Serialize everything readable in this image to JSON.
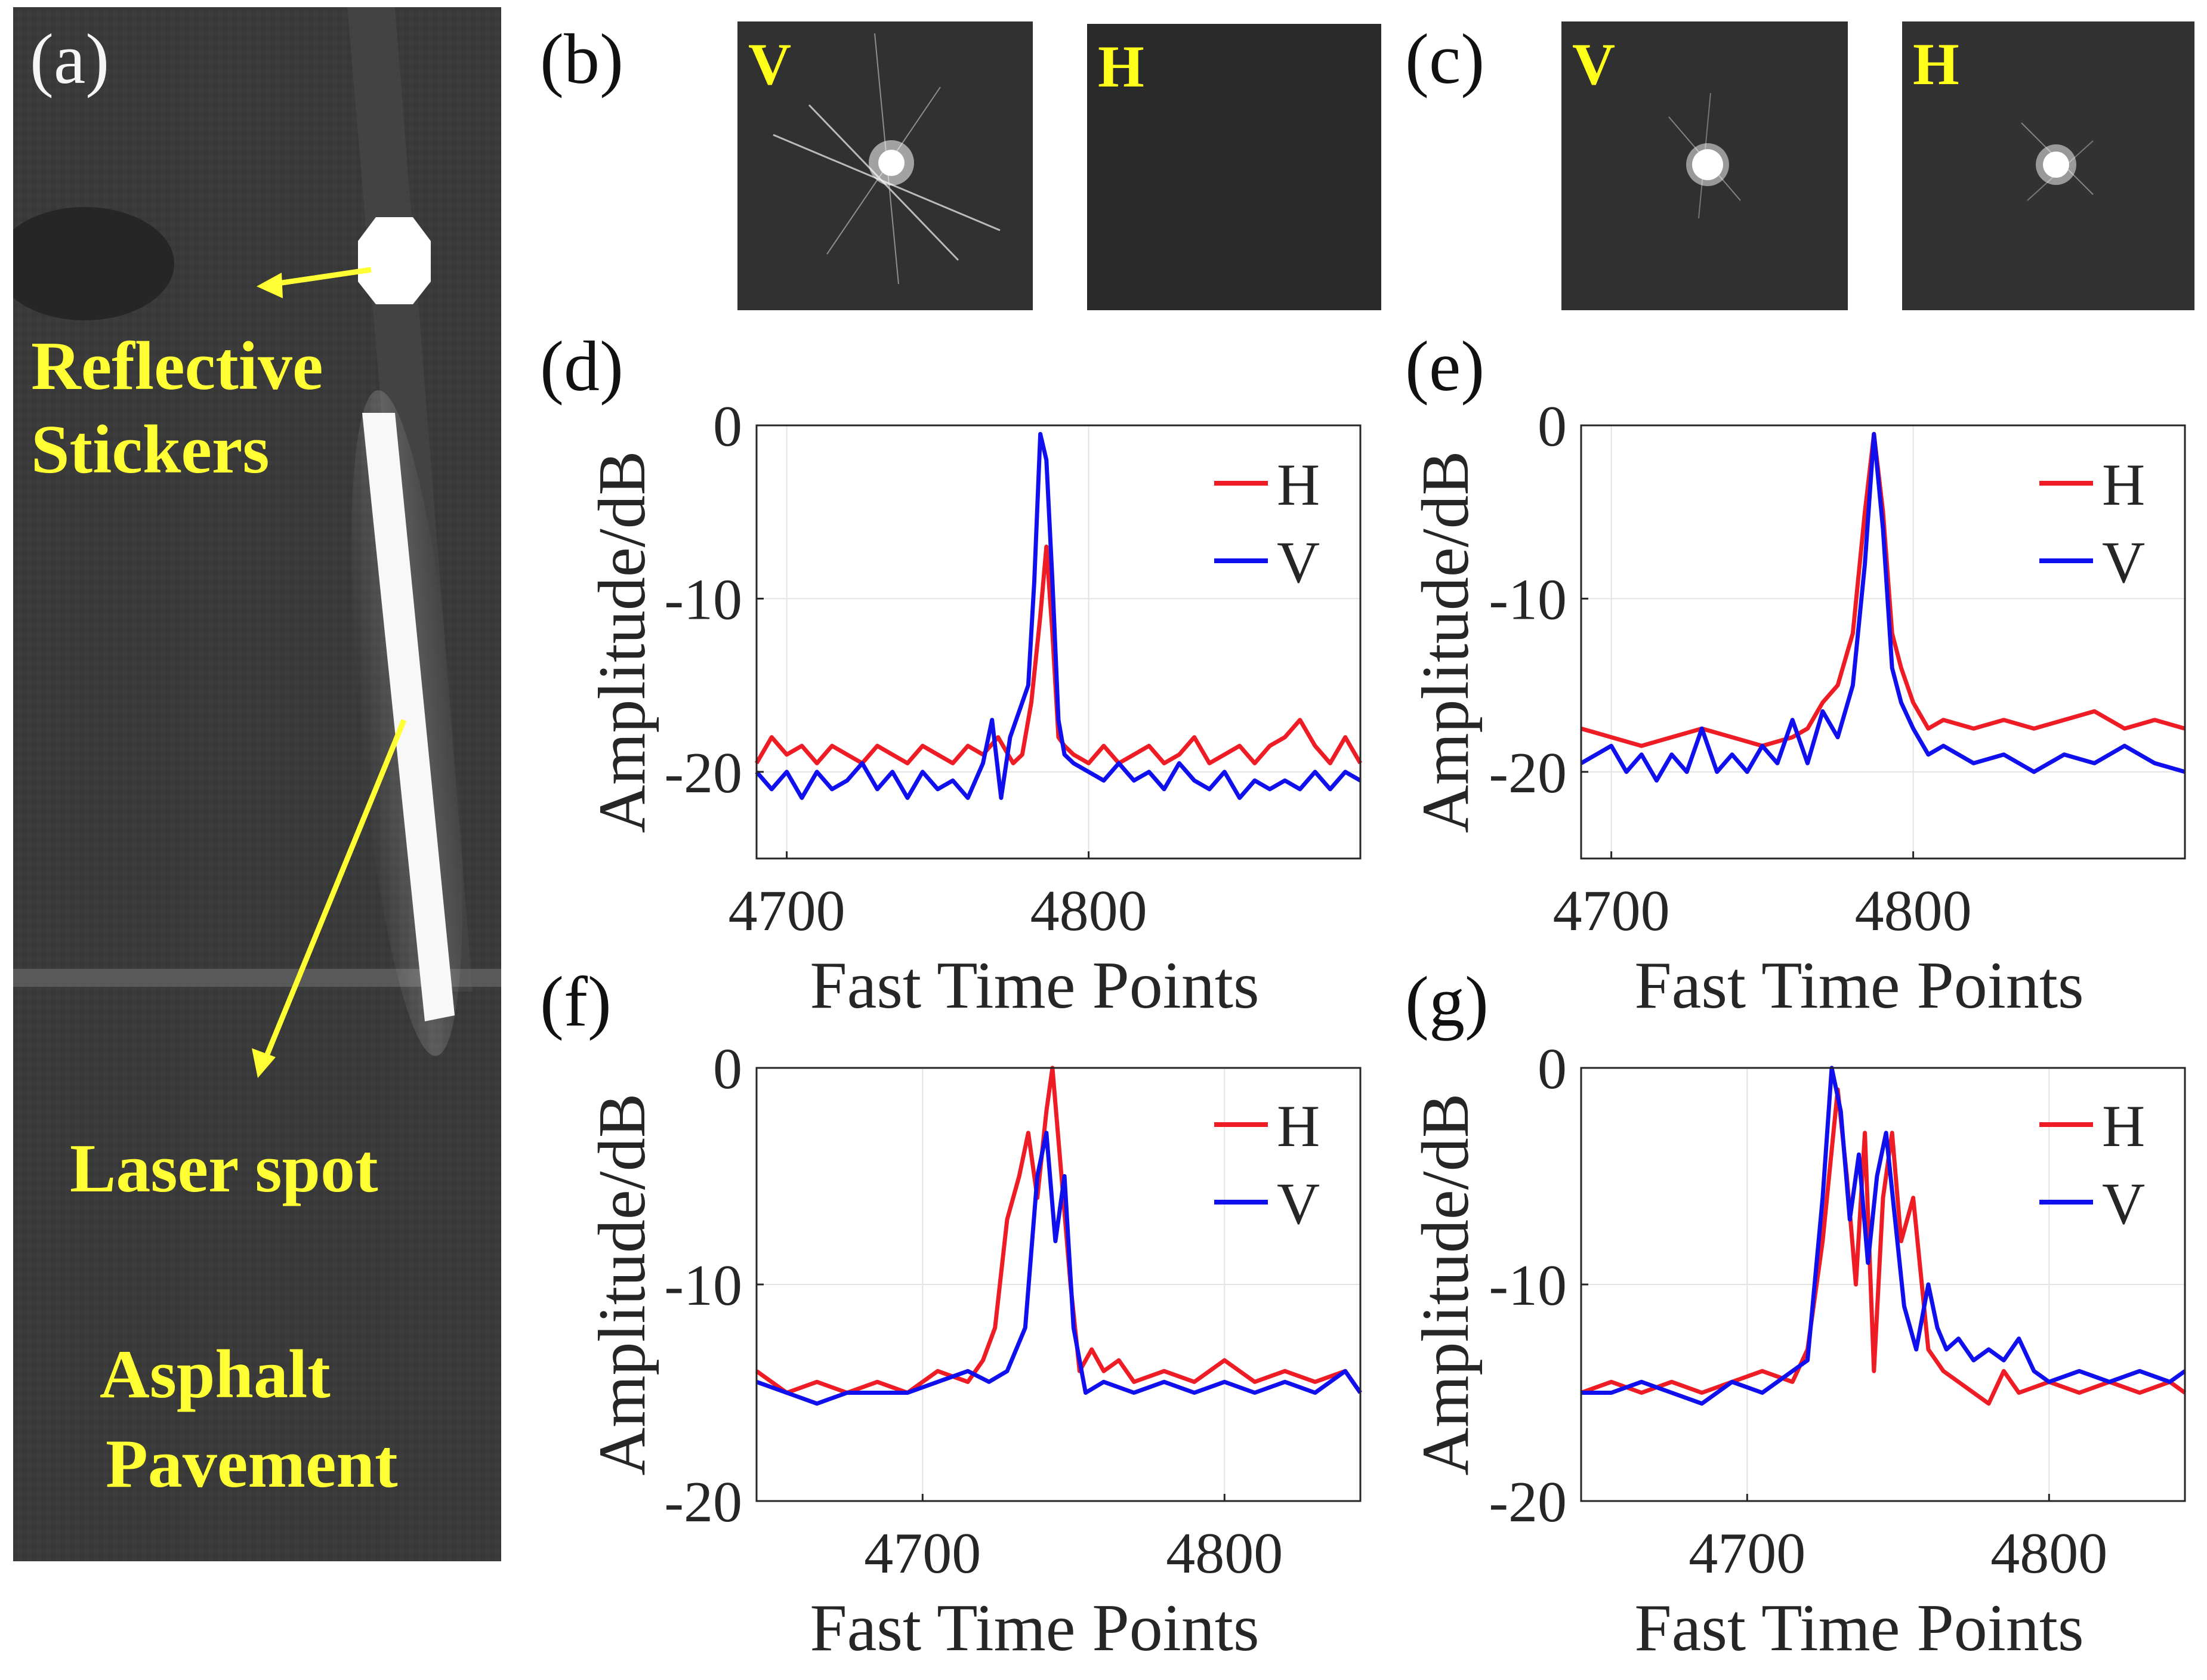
{
  "figure": {
    "panel_labels": {
      "a": "(a)",
      "b": "(b)",
      "c": "(c)",
      "d": "(d)",
      "e": "(e)",
      "f": "(f)",
      "g": "(g)"
    },
    "annotations": {
      "reflective_line1": "Reflective",
      "reflective_line2": "Stickers",
      "laser_spot": "Laser spot",
      "asphalt_line1": "Asphalt",
      "asphalt_line2": "Pavement"
    },
    "thumbnails": {
      "b_v": "V",
      "b_h": "H",
      "c_v": "V",
      "c_h": "H"
    },
    "colors": {
      "H": "#ee1c24",
      "V": "#1010ee",
      "annotation": "#ffff33"
    }
  },
  "chart_data": [
    {
      "id": "d",
      "type": "line",
      "xlabel": "Fast Time Points",
      "ylabel": "Amplitude/dB",
      "xlim": [
        4690,
        4890
      ],
      "ylim": [
        -25,
        0
      ],
      "xticks": [
        4700,
        4800
      ],
      "yticks": [
        0,
        -10,
        -20
      ],
      "legend": [
        "H",
        "V"
      ],
      "series": [
        {
          "name": "H",
          "x": [
            4690,
            4695,
            4700,
            4705,
            4710,
            4715,
            4720,
            4725,
            4730,
            4735,
            4740,
            4745,
            4750,
            4755,
            4760,
            4765,
            4770,
            4775,
            4778,
            4781,
            4784,
            4786,
            4788,
            4790,
            4792,
            4795,
            4800,
            4805,
            4810,
            4815,
            4820,
            4825,
            4830,
            4835,
            4840,
            4845,
            4850,
            4855,
            4860,
            4865,
            4870,
            4875,
            4880,
            4885,
            4890
          ],
          "y": [
            -19.5,
            -18,
            -19,
            -18.5,
            -19.5,
            -18.5,
            -19,
            -19.5,
            -18.5,
            -19,
            -19.5,
            -18.5,
            -19,
            -19.5,
            -18.5,
            -19,
            -18,
            -19.5,
            -19,
            -16,
            -11,
            -7,
            -12,
            -18,
            -18.5,
            -19,
            -19.5,
            -18.5,
            -19.5,
            -19,
            -18.5,
            -19.5,
            -19,
            -18,
            -19.5,
            -19,
            -18.5,
            -19.5,
            -18.5,
            -18,
            -17,
            -18.5,
            -19.5,
            -18,
            -19.5
          ]
        },
        {
          "name": "V",
          "x": [
            4690,
            4695,
            4700,
            4705,
            4710,
            4715,
            4720,
            4725,
            4730,
            4735,
            4740,
            4745,
            4750,
            4755,
            4760,
            4765,
            4768,
            4771,
            4774,
            4777,
            4780,
            4782,
            4784,
            4786,
            4788,
            4790,
            4792,
            4795,
            4800,
            4805,
            4810,
            4815,
            4820,
            4825,
            4830,
            4835,
            4840,
            4845,
            4850,
            4855,
            4860,
            4865,
            4870,
            4875,
            4880,
            4885,
            4890
          ],
          "y": [
            -20,
            -21,
            -20,
            -21.5,
            -20,
            -21,
            -20.5,
            -19.5,
            -21,
            -20,
            -21.5,
            -20,
            -21,
            -20.5,
            -21.5,
            -19.5,
            -17,
            -21.5,
            -18,
            -16.5,
            -15,
            -9,
            -0.5,
            -2,
            -9,
            -17,
            -19,
            -19.5,
            -20,
            -20.5,
            -19.5,
            -20.5,
            -20,
            -21,
            -19.5,
            -20.5,
            -21,
            -20,
            -21.5,
            -20.5,
            -21,
            -20.5,
            -21,
            -20,
            -21,
            -20,
            -20.5
          ]
        }
      ]
    },
    {
      "id": "e",
      "type": "line",
      "xlabel": "Fast Time Points",
      "ylabel": "Amplitude/dB",
      "xlim": [
        4690,
        4890
      ],
      "ylim": [
        -25,
        0
      ],
      "xticks": [
        4700,
        4800
      ],
      "yticks": [
        0,
        -10,
        -20
      ],
      "legend": [
        "H",
        "V"
      ],
      "series": [
        {
          "name": "H",
          "x": [
            4690,
            4700,
            4710,
            4720,
            4730,
            4740,
            4750,
            4760,
            4765,
            4770,
            4775,
            4780,
            4784,
            4787,
            4790,
            4793,
            4796,
            4800,
            4805,
            4810,
            4820,
            4830,
            4840,
            4850,
            4860,
            4870,
            4880,
            4890
          ],
          "y": [
            -17.5,
            -18,
            -18.5,
            -18,
            -17.5,
            -18,
            -18.5,
            -18,
            -17.5,
            -16,
            -15,
            -12,
            -5,
            -0.5,
            -5,
            -12,
            -14,
            -16,
            -17.5,
            -17,
            -17.5,
            -17,
            -17.5,
            -17,
            -16.5,
            -17.5,
            -17,
            -17.5
          ]
        },
        {
          "name": "V",
          "x": [
            4690,
            4700,
            4705,
            4710,
            4715,
            4720,
            4725,
            4730,
            4735,
            4740,
            4745,
            4750,
            4755,
            4760,
            4765,
            4770,
            4775,
            4780,
            4784,
            4787,
            4790,
            4793,
            4796,
            4800,
            4805,
            4810,
            4820,
            4830,
            4840,
            4850,
            4860,
            4870,
            4880,
            4890
          ],
          "y": [
            -19.5,
            -18.5,
            -20,
            -19,
            -20.5,
            -19,
            -20,
            -17.5,
            -20,
            -19,
            -20,
            -18.5,
            -19.5,
            -17,
            -19.5,
            -16.5,
            -18,
            -15,
            -8,
            -0.5,
            -6,
            -14,
            -16,
            -17.5,
            -19,
            -18.5,
            -19.5,
            -19,
            -20,
            -19,
            -19.5,
            -18.5,
            -19.5,
            -20
          ]
        }
      ]
    },
    {
      "id": "f",
      "type": "line",
      "xlabel": "Fast Time Points",
      "ylabel": "Amplitude/dB",
      "xlim": [
        4645,
        4845
      ],
      "ylim": [
        -20,
        0
      ],
      "xticks": [
        4700,
        4800
      ],
      "yticks": [
        0,
        -10,
        -20
      ],
      "legend": [
        "H",
        "V"
      ],
      "series": [
        {
          "name": "H",
          "x": [
            4645,
            4655,
            4665,
            4675,
            4685,
            4695,
            4705,
            4715,
            4720,
            4724,
            4728,
            4732,
            4735,
            4738,
            4741,
            4743,
            4746,
            4749,
            4752,
            4756,
            4760,
            4765,
            4770,
            4780,
            4790,
            4800,
            4810,
            4820,
            4830,
            4840,
            4845
          ],
          "y": [
            -14,
            -15,
            -14.5,
            -15,
            -14.5,
            -15,
            -14,
            -14.5,
            -13.5,
            -12,
            -7,
            -5,
            -3,
            -6,
            -2,
            0,
            -5,
            -10,
            -14,
            -13,
            -14,
            -13.5,
            -14.5,
            -14,
            -14.5,
            -13.5,
            -14.5,
            -14,
            -14.5,
            -14,
            -15
          ]
        },
        {
          "name": "V",
          "x": [
            4645,
            4655,
            4665,
            4675,
            4685,
            4695,
            4705,
            4715,
            4722,
            4728,
            4734,
            4738,
            4741,
            4744,
            4747,
            4750,
            4754,
            4760,
            4770,
            4780,
            4790,
            4800,
            4810,
            4820,
            4830,
            4840,
            4845
          ],
          "y": [
            -14.5,
            -15,
            -15.5,
            -15,
            -15,
            -15,
            -14.5,
            -14,
            -14.5,
            -14,
            -12,
            -5,
            -3,
            -8,
            -5,
            -12,
            -15,
            -14.5,
            -15,
            -14.5,
            -15,
            -14.5,
            -15,
            -14.5,
            -15,
            -14,
            -15
          ]
        }
      ]
    },
    {
      "id": "g",
      "type": "line",
      "xlabel": "Fast Time Points",
      "ylabel": "Amplitude/dB",
      "xlim": [
        4645,
        4845
      ],
      "ylim": [
        -20,
        0
      ],
      "xticks": [
        4700,
        4800
      ],
      "yticks": [
        0,
        -10,
        -20
      ],
      "legend": [
        "H",
        "V"
      ],
      "series": [
        {
          "name": "H",
          "x": [
            4645,
            4655,
            4665,
            4675,
            4685,
            4695,
            4705,
            4715,
            4720,
            4725,
            4730,
            4733,
            4736,
            4739,
            4742,
            4745,
            4748,
            4751,
            4755,
            4760,
            4765,
            4770,
            4775,
            4780,
            4785,
            4790,
            4800,
            4810,
            4820,
            4830,
            4840,
            4845
          ],
          "y": [
            -15,
            -14.5,
            -15,
            -14.5,
            -15,
            -14.5,
            -14,
            -14.5,
            -13,
            -8,
            -1,
            -5,
            -10,
            -3,
            -14,
            -6,
            -3,
            -8,
            -6,
            -13,
            -14,
            -14.5,
            -15,
            -15.5,
            -14,
            -15,
            -14.5,
            -15,
            -14.5,
            -15,
            -14.5,
            -15
          ]
        },
        {
          "name": "V",
          "x": [
            4645,
            4655,
            4665,
            4675,
            4685,
            4695,
            4705,
            4715,
            4720,
            4725,
            4728,
            4731,
            4734,
            4737,
            4740,
            4743,
            4746,
            4749,
            4752,
            4756,
            4760,
            4763,
            4766,
            4770,
            4775,
            4780,
            4785,
            4790,
            4795,
            4800,
            4810,
            4820,
            4830,
            4840,
            4845
          ],
          "y": [
            -15,
            -15,
            -14.5,
            -15,
            -15.5,
            -14.5,
            -15,
            -14,
            -13.5,
            -6,
            0,
            -2,
            -7,
            -4,
            -9,
            -5,
            -3,
            -7,
            -11,
            -13,
            -10,
            -12,
            -13,
            -12.5,
            -13.5,
            -13,
            -13.5,
            -12.5,
            -14,
            -14.5,
            -14,
            -14.5,
            -14,
            -14.5,
            -14
          ]
        }
      ]
    }
  ]
}
